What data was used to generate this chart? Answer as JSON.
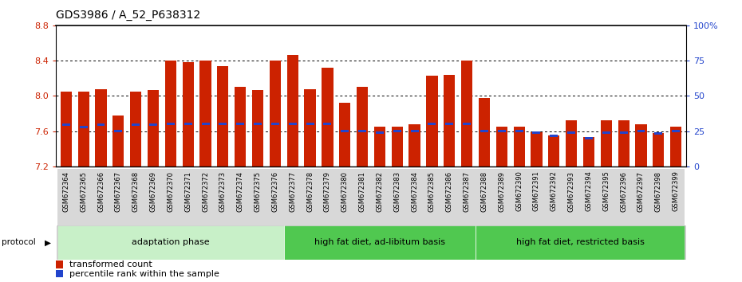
{
  "title": "GDS3986 / A_52_P638312",
  "samples": [
    "GSM672364",
    "GSM672365",
    "GSM672366",
    "GSM672367",
    "GSM672368",
    "GSM672369",
    "GSM672370",
    "GSM672371",
    "GSM672372",
    "GSM672373",
    "GSM672374",
    "GSM672375",
    "GSM672376",
    "GSM672377",
    "GSM672378",
    "GSM672379",
    "GSM672380",
    "GSM672381",
    "GSM672382",
    "GSM672383",
    "GSM672384",
    "GSM672385",
    "GSM672386",
    "GSM672387",
    "GSM672388",
    "GSM672389",
    "GSM672390",
    "GSM672391",
    "GSM672392",
    "GSM672393",
    "GSM672394",
    "GSM672395",
    "GSM672396",
    "GSM672397",
    "GSM672398",
    "GSM672399"
  ],
  "bar_values": [
    8.05,
    8.05,
    8.08,
    7.78,
    8.05,
    8.07,
    8.4,
    8.38,
    8.4,
    8.34,
    8.1,
    8.07,
    8.4,
    8.46,
    8.08,
    8.32,
    7.92,
    8.1,
    7.65,
    7.65,
    7.68,
    8.23,
    8.24,
    8.4,
    7.98,
    7.65,
    7.65,
    7.59,
    7.55,
    7.72,
    7.53,
    7.72,
    7.72,
    7.68,
    7.58,
    7.65
  ],
  "percentile_values": [
    7.67,
    7.65,
    7.67,
    7.6,
    7.67,
    7.67,
    7.68,
    7.68,
    7.68,
    7.68,
    7.68,
    7.68,
    7.68,
    7.68,
    7.68,
    7.68,
    7.6,
    7.6,
    7.58,
    7.6,
    7.6,
    7.68,
    7.68,
    7.68,
    7.6,
    7.6,
    7.6,
    7.58,
    7.55,
    7.58,
    7.52,
    7.58,
    7.58,
    7.6,
    7.57,
    7.6
  ],
  "groups": [
    {
      "label": "adaptation phase",
      "start": 0,
      "end": 13,
      "color": "#c8f0c8"
    },
    {
      "label": "high fat diet, ad-libitum basis",
      "start": 13,
      "end": 24,
      "color": "#50c850"
    },
    {
      "label": "high fat diet, restricted basis",
      "start": 24,
      "end": 36,
      "color": "#50c850"
    }
  ],
  "ymin": 7.2,
  "ymax": 8.8,
  "yticks_left": [
    7.2,
    7.6,
    8.0,
    8.4,
    8.8
  ],
  "yticks_right": [
    0,
    25,
    50,
    75,
    100
  ],
  "bar_color": "#cc2200",
  "percentile_color": "#2244cc",
  "title_fontsize": 10,
  "axis_label_color_left": "#cc2200",
  "axis_label_color_right": "#2244cc"
}
